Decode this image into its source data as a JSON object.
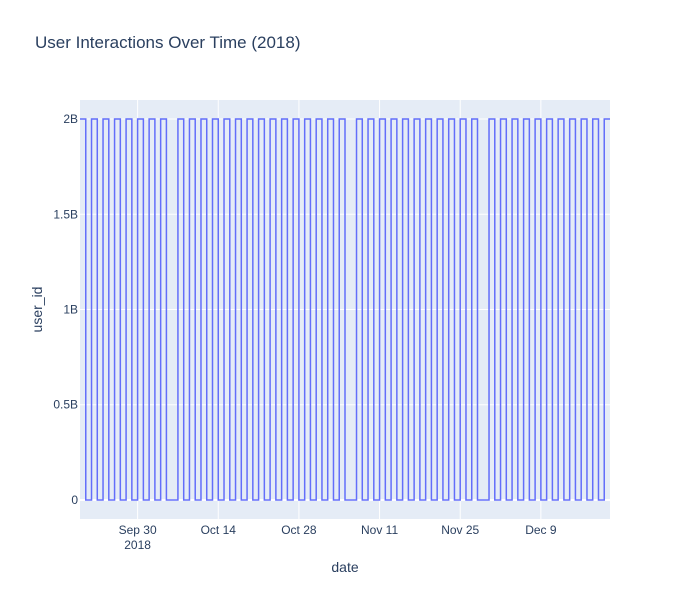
{
  "chart_data": {
    "type": "line",
    "line_shape": "step",
    "title": "User Interactions Over Time (2018)",
    "xlabel": "date",
    "ylabel": "user_id",
    "xlim": [
      "2018-09-20",
      "2018-12-21"
    ],
    "ylim": [
      -0.1,
      2.1
    ],
    "x_ticks": [
      {
        "date": "2018-09-30",
        "label": "Sep 30",
        "sublabel": "2018"
      },
      {
        "date": "2018-10-14",
        "label": "Oct 14",
        "sublabel": ""
      },
      {
        "date": "2018-10-28",
        "label": "Oct 28",
        "sublabel": ""
      },
      {
        "date": "2018-11-11",
        "label": "Nov 11",
        "sublabel": ""
      },
      {
        "date": "2018-11-25",
        "label": "Nov 25",
        "sublabel": ""
      },
      {
        "date": "2018-12-09",
        "label": "Dec 9",
        "sublabel": ""
      }
    ],
    "y_ticks": [
      {
        "value": 0,
        "label": "0"
      },
      {
        "value": 0.5,
        "label": "0.5B"
      },
      {
        "value": 1,
        "label": "1B"
      },
      {
        "value": 1.5,
        "label": "1.5B"
      },
      {
        "value": 2,
        "label": "2B"
      }
    ],
    "y_unit_multiplier": 1000000000,
    "grid": true,
    "colors": {
      "line": "#636efa",
      "plot_bg": "#e5ecf6",
      "grid": "#ffffff",
      "text": "#2a3f5f"
    },
    "series": [
      {
        "x": [
          "2018-09-20",
          "2018-09-21",
          "2018-09-22",
          "2018-09-23",
          "2018-09-24",
          "2018-09-25",
          "2018-09-26",
          "2018-09-27",
          "2018-09-28",
          "2018-09-29",
          "2018-09-30",
          "2018-10-01",
          "2018-10-02",
          "2018-10-03",
          "2018-10-04",
          "2018-10-05",
          "2018-10-06",
          "2018-10-07",
          "2018-10-08",
          "2018-10-09",
          "2018-10-10",
          "2018-10-11",
          "2018-10-12",
          "2018-10-13",
          "2018-10-14",
          "2018-10-15",
          "2018-10-16",
          "2018-10-17",
          "2018-10-18",
          "2018-10-19",
          "2018-10-20",
          "2018-10-21",
          "2018-10-22",
          "2018-10-23",
          "2018-10-24",
          "2018-10-25",
          "2018-10-26",
          "2018-10-27",
          "2018-10-28",
          "2018-10-29",
          "2018-10-30",
          "2018-10-31",
          "2018-11-01",
          "2018-11-02",
          "2018-11-03",
          "2018-11-04",
          "2018-11-05",
          "2018-11-06",
          "2018-11-07",
          "2018-11-08",
          "2018-11-09",
          "2018-11-10",
          "2018-11-11",
          "2018-11-12",
          "2018-11-13",
          "2018-11-14",
          "2018-11-15",
          "2018-11-16",
          "2018-11-17",
          "2018-11-18",
          "2018-11-19",
          "2018-11-20",
          "2018-11-21",
          "2018-11-22",
          "2018-11-23",
          "2018-11-24",
          "2018-11-25",
          "2018-11-26",
          "2018-11-27",
          "2018-11-28",
          "2018-11-29",
          "2018-11-30",
          "2018-12-01",
          "2018-12-02",
          "2018-12-03",
          "2018-12-04",
          "2018-12-05",
          "2018-12-06",
          "2018-12-07",
          "2018-12-08",
          "2018-12-09",
          "2018-12-10",
          "2018-12-11",
          "2018-12-12",
          "2018-12-13",
          "2018-12-14",
          "2018-12-15",
          "2018-12-16",
          "2018-12-17",
          "2018-12-18",
          "2018-12-19",
          "2018-12-20",
          "2018-12-21"
        ],
        "y": [
          2,
          0,
          2,
          0,
          2,
          0,
          2,
          0,
          2,
          0,
          2,
          0,
          2,
          0,
          2,
          0,
          0,
          2,
          0,
          2,
          0,
          2,
          0,
          2,
          0,
          2,
          0,
          2,
          0,
          2,
          0,
          2,
          0,
          2,
          0,
          2,
          0,
          2,
          0,
          2,
          0,
          2,
          0,
          2,
          0,
          2,
          0,
          0,
          2,
          0,
          2,
          0,
          2,
          0,
          2,
          0,
          2,
          0,
          2,
          0,
          2,
          0,
          2,
          0,
          2,
          0,
          2,
          0,
          2,
          0,
          0,
          2,
          0,
          2,
          0,
          2,
          0,
          2,
          0,
          2,
          0,
          2,
          0,
          2,
          0,
          2,
          0,
          2,
          0,
          2,
          0,
          2,
          2
        ]
      }
    ]
  }
}
